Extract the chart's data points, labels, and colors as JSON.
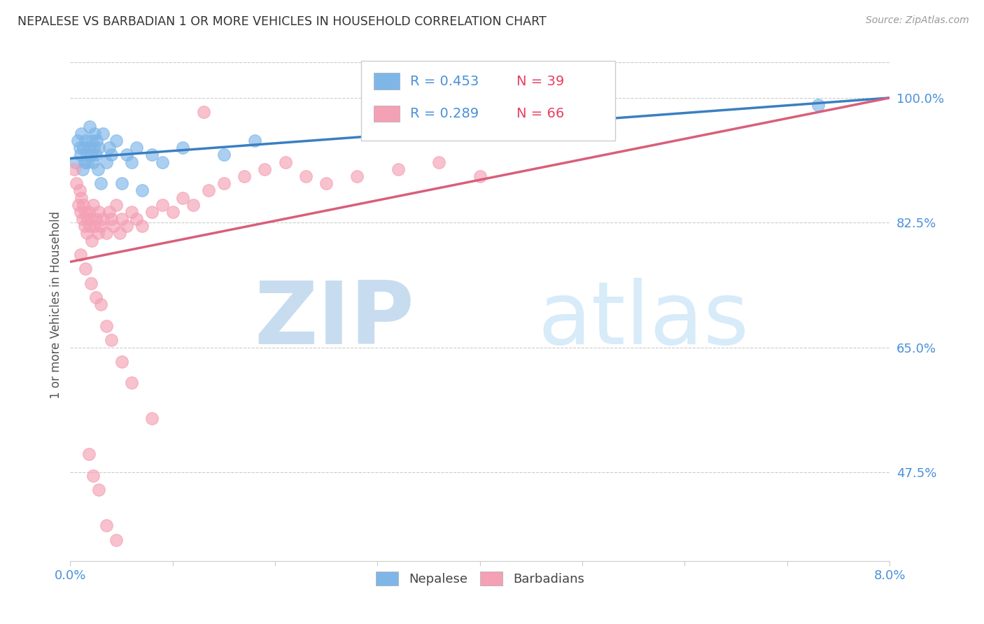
{
  "title": "NEPALESE VS BARBADIAN 1 OR MORE VEHICLES IN HOUSEHOLD CORRELATION CHART",
  "source": "Source: ZipAtlas.com",
  "ylabel": "1 or more Vehicles in Household",
  "xmin": 0.0,
  "xmax": 8.0,
  "ymin": 35.0,
  "ymax": 107.0,
  "yticks": [
    47.5,
    65.0,
    82.5,
    100.0
  ],
  "ytick_labels": [
    "47.5%",
    "65.0%",
    "82.5%",
    "100.0%"
  ],
  "legend_nepalese_R": 0.453,
  "legend_nepalese_N": 39,
  "legend_barbadian_R": 0.289,
  "legend_barbadian_N": 66,
  "nepalese_color": "#7EB6E8",
  "barbadian_color": "#F4A0B5",
  "nepalese_line_color": "#3A7FC1",
  "barbadian_line_color": "#D95F7A",
  "title_color": "#333333",
  "source_color": "#999999",
  "axis_label_color": "#4A90D9",
  "legend_R_color": "#4A90D9",
  "legend_N_color": "#E84060",
  "background_color": "#FFFFFF",
  "nepalese_x": [
    0.05,
    0.07,
    0.09,
    0.1,
    0.11,
    0.12,
    0.13,
    0.14,
    0.15,
    0.16,
    0.17,
    0.18,
    0.19,
    0.2,
    0.21,
    0.22,
    0.23,
    0.24,
    0.25,
    0.26,
    0.27,
    0.28,
    0.3,
    0.32,
    0.35,
    0.38,
    0.4,
    0.45,
    0.5,
    0.55,
    0.6,
    0.65,
    0.7,
    0.8,
    0.9,
    1.1,
    1.5,
    1.8,
    7.3
  ],
  "nepalese_y": [
    91,
    94,
    93,
    92,
    95,
    90,
    93,
    91,
    94,
    92,
    91,
    93,
    96,
    92,
    94,
    91,
    93,
    95,
    92,
    94,
    90,
    93,
    88,
    95,
    91,
    93,
    92,
    94,
    88,
    92,
    91,
    93,
    87,
    92,
    91,
    93,
    92,
    94,
    99
  ],
  "barbadian_x": [
    0.04,
    0.06,
    0.08,
    0.09,
    0.1,
    0.11,
    0.12,
    0.13,
    0.14,
    0.15,
    0.16,
    0.17,
    0.18,
    0.19,
    0.2,
    0.21,
    0.22,
    0.24,
    0.25,
    0.27,
    0.28,
    0.3,
    0.32,
    0.35,
    0.38,
    0.4,
    0.42,
    0.45,
    0.48,
    0.5,
    0.55,
    0.6,
    0.65,
    0.7,
    0.8,
    0.9,
    1.0,
    1.1,
    1.2,
    1.35,
    1.5,
    1.7,
    1.9,
    2.1,
    2.3,
    2.5,
    2.8,
    3.2,
    3.6,
    4.0,
    0.1,
    0.15,
    0.2,
    0.25,
    0.3,
    0.35,
    0.4,
    0.5,
    0.6,
    0.8,
    0.18,
    0.22,
    0.28,
    0.35,
    0.45,
    1.3
  ],
  "barbadian_y": [
    90,
    88,
    85,
    87,
    84,
    86,
    83,
    85,
    82,
    84,
    81,
    83,
    84,
    82,
    83,
    80,
    85,
    82,
    83,
    81,
    84,
    82,
    83,
    81,
    84,
    83,
    82,
    85,
    81,
    83,
    82,
    84,
    83,
    82,
    84,
    85,
    84,
    86,
    85,
    87,
    88,
    89,
    90,
    91,
    89,
    88,
    89,
    90,
    91,
    89,
    78,
    76,
    74,
    72,
    71,
    68,
    66,
    63,
    60,
    55,
    50,
    47,
    45,
    40,
    38,
    98
  ]
}
